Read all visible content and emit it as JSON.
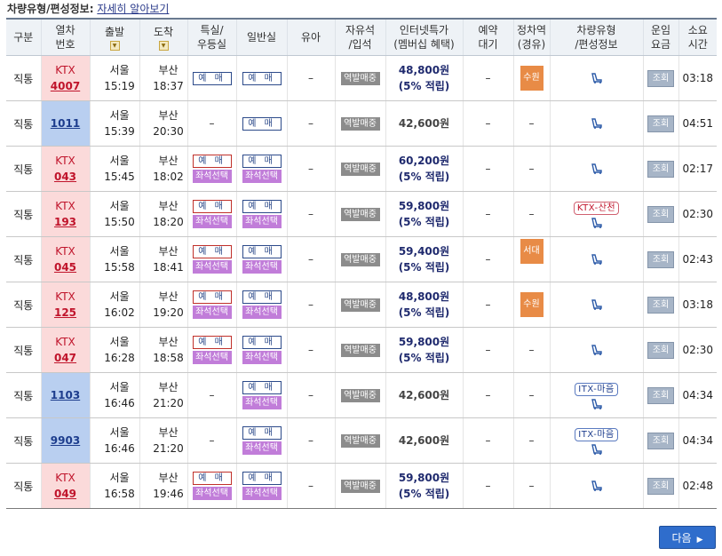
{
  "info": {
    "label": "차량유형/편성정보:",
    "link": "자세히 알아보기"
  },
  "headers": {
    "type": "구분",
    "train_no": [
      "열차",
      "번호"
    ],
    "departure": "출발",
    "arrival": "도착",
    "special": [
      "특실/",
      "우등실"
    ],
    "general": "일반실",
    "infant": "유아",
    "free_seat": [
      "자유석",
      "/입석"
    ],
    "internet_price": [
      "인터넷특가",
      "(멤버십 혜택)"
    ],
    "reserve_wait": [
      "예약",
      "대기"
    ],
    "stop_station": [
      "정차역",
      "(경유)"
    ],
    "vehicle_type": [
      "차량유형",
      "/편성정보"
    ],
    "fare": [
      "운임",
      "요금"
    ],
    "duration": [
      "소요",
      "시간"
    ]
  },
  "sort_icon": "sort-down-icon",
  "labels": {
    "yemae": "예 매",
    "seat_select": "좌석선택",
    "station_sale": "역발매중",
    "fare_view": "조회",
    "dash": "–",
    "next": "다음"
  },
  "rows": [
    {
      "type": "직통",
      "train": "KTX",
      "no": "4007",
      "kind": "ktx",
      "dep_st": "서울",
      "dep_t": "15:19",
      "arr_st": "부산",
      "arr_t": "18:37",
      "special": "yemae",
      "general": "yemae",
      "price": "48,800원",
      "points": "(5% 적립)",
      "stop": "수원",
      "badge": "",
      "duration": "03:18"
    },
    {
      "type": "직통",
      "train": "",
      "no": "1011",
      "kind": "itx",
      "dep_st": "서울",
      "dep_t": "15:39",
      "arr_st": "부산",
      "arr_t": "20:30",
      "special": "none",
      "general": "yemae",
      "price": "42,600원",
      "points": "",
      "stop": "",
      "badge": "",
      "duration": "04:51"
    },
    {
      "type": "직통",
      "train": "KTX",
      "no": "043",
      "kind": "ktx",
      "dep_st": "서울",
      "dep_t": "15:45",
      "arr_st": "부산",
      "arr_t": "18:02",
      "special": "both",
      "general": "both",
      "price": "60,200원",
      "points": "(5% 적립)",
      "stop": "",
      "badge": "",
      "duration": "02:17"
    },
    {
      "type": "직통",
      "train": "KTX",
      "no": "193",
      "kind": "ktx",
      "dep_st": "서울",
      "dep_t": "15:50",
      "arr_st": "부산",
      "arr_t": "18:20",
      "special": "both",
      "general": "both",
      "price": "59,800원",
      "points": "(5% 적립)",
      "stop": "",
      "badge": "KTX-산천",
      "badge_color": "red",
      "duration": "02:30"
    },
    {
      "type": "직통",
      "train": "KTX",
      "no": "045",
      "kind": "ktx",
      "dep_st": "서울",
      "dep_t": "15:58",
      "arr_st": "부산",
      "arr_t": "18:41",
      "special": "both",
      "general": "both",
      "price": "59,400원",
      "points": "(5% 적립)",
      "stop": "서대구",
      "badge": "",
      "duration": "02:43"
    },
    {
      "type": "직통",
      "train": "KTX",
      "no": "125",
      "kind": "ktx",
      "dep_st": "서울",
      "dep_t": "16:02",
      "arr_st": "부산",
      "arr_t": "19:20",
      "special": "both",
      "general": "both",
      "price": "48,800원",
      "points": "(5% 적립)",
      "stop": "수원",
      "badge": "",
      "duration": "03:18"
    },
    {
      "type": "직통",
      "train": "KTX",
      "no": "047",
      "kind": "ktx",
      "dep_st": "서울",
      "dep_t": "16:28",
      "arr_st": "부산",
      "arr_t": "18:58",
      "special": "both",
      "general": "both",
      "price": "59,800원",
      "points": "(5% 적립)",
      "stop": "",
      "badge": "",
      "duration": "02:30"
    },
    {
      "type": "직통",
      "train": "",
      "no": "1103",
      "kind": "itx",
      "dep_st": "서울",
      "dep_t": "16:46",
      "arr_st": "부산",
      "arr_t": "21:20",
      "special": "none",
      "general": "both",
      "price": "42,600원",
      "points": "",
      "stop": "",
      "badge": "ITX-마음",
      "badge_color": "blue",
      "duration": "04:34"
    },
    {
      "type": "직통",
      "train": "",
      "no": "9903",
      "kind": "itx",
      "dep_st": "서울",
      "dep_t": "16:46",
      "arr_st": "부산",
      "arr_t": "21:20",
      "special": "none",
      "general": "both",
      "price": "42,600원",
      "points": "",
      "stop": "",
      "badge": "ITX-마음",
      "badge_color": "blue",
      "duration": "04:34"
    },
    {
      "type": "직통",
      "train": "KTX",
      "no": "049",
      "kind": "ktx",
      "dep_st": "서울",
      "dep_t": "16:58",
      "arr_st": "부산",
      "arr_t": "19:46",
      "special": "both",
      "general": "both",
      "price": "59,800원",
      "points": "(5% 적립)",
      "stop": "",
      "badge": "",
      "duration": "02:48"
    }
  ]
}
